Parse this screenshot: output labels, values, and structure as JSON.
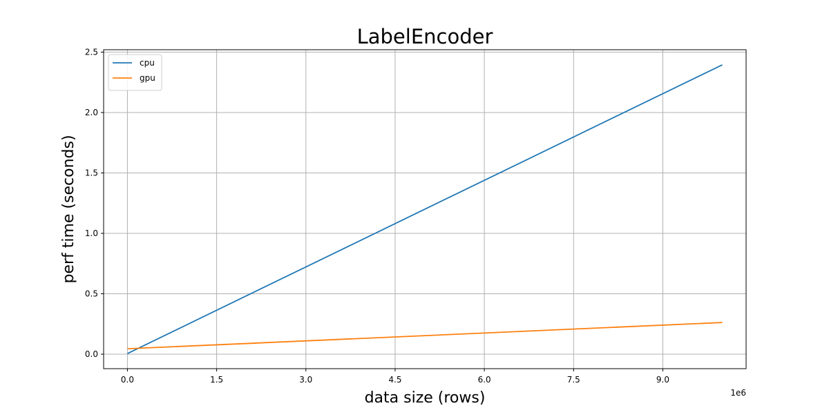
{
  "chart_data": {
    "type": "line",
    "title": "LabelEncoder",
    "xlabel": "data size (rows)",
    "ylabel": "perf time (seconds)",
    "x_offset_label": "1e6",
    "x_scale": 1000000,
    "xlim": [
      -400000,
      10400000
    ],
    "ylim": [
      -0.12,
      2.52
    ],
    "x_ticks": [
      0,
      1500000,
      3000000,
      4500000,
      6000000,
      7500000,
      9000000
    ],
    "x_tick_labels": [
      "0.0",
      "1.5",
      "3.0",
      "4.5",
      "6.0",
      "7.5",
      "9.0"
    ],
    "y_ticks": [
      0,
      0.5,
      1.0,
      1.5,
      2.0,
      2.5
    ],
    "y_tick_labels": [
      "0.0",
      "0.5",
      "1.0",
      "1.5",
      "2.0",
      "2.5"
    ],
    "grid": true,
    "legend_position": "top-left",
    "series": [
      {
        "name": "cpu",
        "color": "#1f77b4",
        "x": [
          0,
          10000000
        ],
        "y": [
          0.005,
          2.395
        ]
      },
      {
        "name": "gpu",
        "color": "#ff7f0e",
        "x": [
          0,
          10000000
        ],
        "y": [
          0.045,
          0.262
        ]
      }
    ]
  }
}
